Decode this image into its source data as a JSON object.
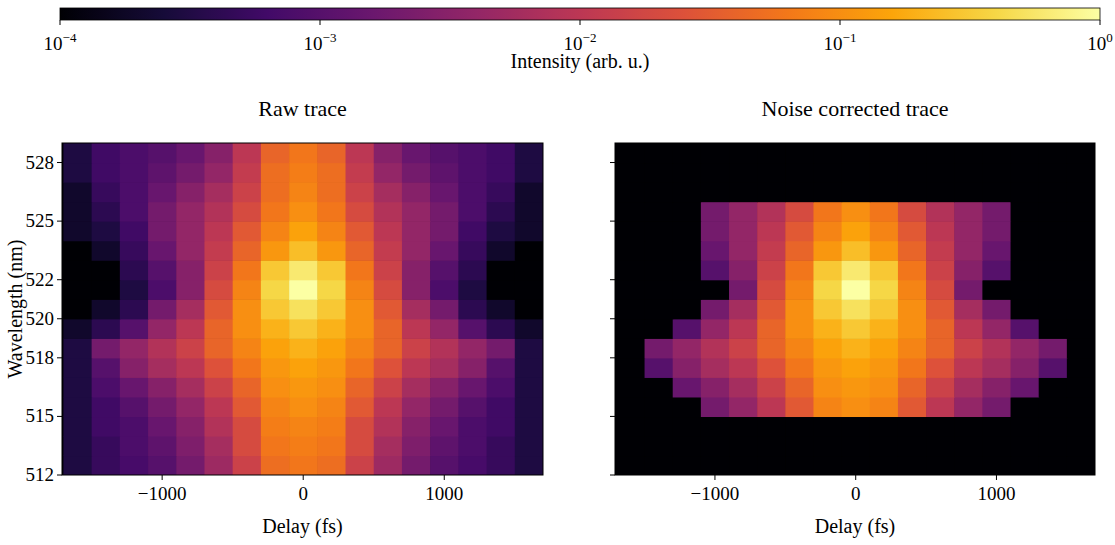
{
  "chart_data": [
    {
      "type": "heatmap",
      "title": "Raw trace",
      "x_label": "Delay (fs)",
      "y_label": "Wavelength (nm)",
      "xlim": [
        -1710,
        1700
      ],
      "ylim": [
        512,
        529
      ],
      "xticks": [
        -1000,
        0,
        1000
      ],
      "yticks": [
        512,
        515,
        518,
        520,
        522,
        525,
        528
      ],
      "log": true,
      "tick_labels": true,
      "x": [
        -1600,
        -1400,
        -1200,
        -1000,
        -800,
        -600,
        -400,
        -200,
        0,
        200,
        400,
        600,
        800,
        1000,
        1200,
        1400,
        1600
      ],
      "y": [
        512.5,
        513.5,
        514.5,
        515.5,
        516.5,
        517.5,
        518.5,
        519.5,
        520.5,
        521.5,
        522.5,
        523.5,
        524.5,
        525.5,
        526.5,
        527.5,
        528.5
      ],
      "values": [
        [
          0.0003,
          0.0005,
          0.0007,
          0.001,
          0.002,
          0.005,
          0.015,
          0.05,
          0.06,
          0.05,
          0.015,
          0.005,
          0.002,
          0.001,
          0.0007,
          0.0005,
          0.0003
        ],
        [
          0.0003,
          0.0005,
          0.0008,
          0.0012,
          0.0025,
          0.006,
          0.02,
          0.06,
          0.07,
          0.06,
          0.02,
          0.006,
          0.0025,
          0.0012,
          0.0008,
          0.0005,
          0.0003
        ],
        [
          0.0003,
          0.0006,
          0.0008,
          0.0015,
          0.003,
          0.008,
          0.02,
          0.07,
          0.08,
          0.07,
          0.02,
          0.008,
          0.003,
          0.0015,
          0.0008,
          0.0006,
          0.0003
        ],
        [
          0.0003,
          0.0006,
          0.001,
          0.002,
          0.004,
          0.01,
          0.03,
          0.08,
          0.1,
          0.08,
          0.03,
          0.01,
          0.004,
          0.002,
          0.001,
          0.0006,
          0.0003
        ],
        [
          0.0003,
          0.0008,
          0.0015,
          0.003,
          0.006,
          0.015,
          0.04,
          0.1,
          0.12,
          0.1,
          0.04,
          0.015,
          0.006,
          0.003,
          0.0015,
          0.0008,
          0.0003
        ],
        [
          0.0003,
          0.001,
          0.003,
          0.006,
          0.01,
          0.025,
          0.06,
          0.12,
          0.15,
          0.12,
          0.06,
          0.025,
          0.01,
          0.006,
          0.003,
          0.001,
          0.0003
        ],
        [
          0.0003,
          0.002,
          0.004,
          0.008,
          0.015,
          0.04,
          0.08,
          0.15,
          0.2,
          0.15,
          0.08,
          0.04,
          0.015,
          0.008,
          0.004,
          0.002,
          0.0003
        ],
        [
          0.0002,
          0.0004,
          0.001,
          0.004,
          0.01,
          0.04,
          0.1,
          0.2,
          0.3,
          0.2,
          0.1,
          0.04,
          0.01,
          0.004,
          0.001,
          0.0004,
          0.0002
        ],
        [
          0.0001,
          0.0002,
          0.0004,
          0.002,
          0.006,
          0.03,
          0.1,
          0.3,
          0.5,
          0.3,
          0.1,
          0.03,
          0.006,
          0.002,
          0.0004,
          0.0002,
          0.0001
        ],
        [
          0.0001,
          0.0001,
          0.0003,
          0.0008,
          0.003,
          0.02,
          0.08,
          0.4,
          1,
          0.4,
          0.08,
          0.02,
          0.003,
          0.0008,
          0.0003,
          0.0001,
          0.0001
        ],
        [
          0.0001,
          0.0001,
          0.0004,
          0.001,
          0.003,
          0.015,
          0.06,
          0.3,
          0.6,
          0.3,
          0.06,
          0.015,
          0.003,
          0.001,
          0.0004,
          0.0001,
          0.0001
        ],
        [
          0.0001,
          0.0002,
          0.0005,
          0.0015,
          0.004,
          0.012,
          0.04,
          0.12,
          0.25,
          0.12,
          0.04,
          0.012,
          0.004,
          0.0015,
          0.0005,
          0.0002,
          0.0001
        ],
        [
          0.0002,
          0.0003,
          0.0006,
          0.002,
          0.004,
          0.01,
          0.03,
          0.08,
          0.15,
          0.08,
          0.03,
          0.01,
          0.004,
          0.002,
          0.0006,
          0.0003,
          0.0002
        ],
        [
          0.0002,
          0.0004,
          0.0008,
          0.002,
          0.004,
          0.008,
          0.02,
          0.06,
          0.1,
          0.06,
          0.02,
          0.008,
          0.004,
          0.002,
          0.0008,
          0.0004,
          0.0002
        ],
        [
          0.0002,
          0.0005,
          0.0008,
          0.0015,
          0.003,
          0.006,
          0.015,
          0.05,
          0.08,
          0.05,
          0.015,
          0.006,
          0.003,
          0.0015,
          0.0008,
          0.0005,
          0.0002
        ],
        [
          0.0003,
          0.0006,
          0.0008,
          0.0012,
          0.002,
          0.004,
          0.012,
          0.05,
          0.07,
          0.05,
          0.012,
          0.004,
          0.002,
          0.0012,
          0.0008,
          0.0006,
          0.0003
        ],
        [
          0.0003,
          0.0006,
          0.0008,
          0.001,
          0.0015,
          0.003,
          0.01,
          0.04,
          0.06,
          0.04,
          0.01,
          0.003,
          0.0015,
          0.001,
          0.0008,
          0.0006,
          0.0003
        ]
      ]
    },
    {
      "type": "heatmap",
      "title": "Noise corrected trace",
      "x_label": "Delay (fs)",
      "xlim": [
        -1710,
        1700
      ],
      "ylim": [
        512,
        529
      ],
      "xticks": [
        -1000,
        0,
        1000
      ],
      "yticks": [
        512,
        515,
        518,
        520,
        522,
        525,
        528
      ],
      "log": true,
      "tick_labels": "x",
      "x": [
        -1600,
        -1400,
        -1200,
        -1000,
        -800,
        -600,
        -400,
        -200,
        0,
        200,
        400,
        600,
        800,
        1000,
        1200,
        1400,
        1600
      ],
      "y": [
        512.5,
        513.5,
        514.5,
        515.5,
        516.5,
        517.5,
        518.5,
        519.5,
        520.5,
        521.5,
        522.5,
        523.5,
        524.5,
        525.5,
        526.5,
        527.5,
        528.5
      ],
      "values": [
        [
          0.0001,
          0.0001,
          0.0001,
          0.0001,
          0.0001,
          0.0001,
          0.0001,
          0.0001,
          0.0001,
          0.0001,
          0.0001,
          0.0001,
          0.0001,
          0.0001,
          0.0001,
          0.0001,
          0.0001
        ],
        [
          0.0001,
          0.0001,
          0.0001,
          0.0001,
          0.0001,
          0.0001,
          0.0001,
          0.0001,
          0.0001,
          0.0001,
          0.0001,
          0.0001,
          0.0001,
          0.0001,
          0.0001,
          0.0001,
          0.0001
        ],
        [
          0.0001,
          0.0001,
          0.0001,
          0.0001,
          0.0001,
          0.0001,
          0.0001,
          0.0001,
          0.0001,
          0.0001,
          0.0001,
          0.0001,
          0.0001,
          0.0001,
          0.0001,
          0.0001,
          0.0001
        ],
        [
          0.0001,
          0.0001,
          0.0001,
          0.002,
          0.004,
          0.01,
          0.03,
          0.08,
          0.1,
          0.08,
          0.03,
          0.01,
          0.004,
          0.002,
          0.0001,
          0.0001,
          0.0001
        ],
        [
          0.0001,
          0.0001,
          0.0015,
          0.003,
          0.006,
          0.015,
          0.04,
          0.1,
          0.12,
          0.1,
          0.04,
          0.015,
          0.006,
          0.003,
          0.0015,
          0.0001,
          0.0001
        ],
        [
          0.0001,
          0.001,
          0.003,
          0.006,
          0.01,
          0.025,
          0.06,
          0.12,
          0.15,
          0.12,
          0.06,
          0.025,
          0.01,
          0.006,
          0.003,
          0.001,
          0.0001
        ],
        [
          0.0001,
          0.002,
          0.004,
          0.008,
          0.015,
          0.04,
          0.08,
          0.15,
          0.2,
          0.15,
          0.08,
          0.04,
          0.015,
          0.008,
          0.004,
          0.002,
          0.0001
        ],
        [
          0.0001,
          0.0001,
          0.001,
          0.004,
          0.01,
          0.04,
          0.1,
          0.2,
          0.3,
          0.2,
          0.1,
          0.04,
          0.01,
          0.004,
          0.001,
          0.0001,
          0.0001
        ],
        [
          0.0001,
          0.0001,
          0.0001,
          0.002,
          0.006,
          0.03,
          0.1,
          0.3,
          0.5,
          0.3,
          0.1,
          0.03,
          0.006,
          0.002,
          0.0001,
          0.0001,
          0.0001
        ],
        [
          0.0001,
          0.0001,
          0.0001,
          0.0001,
          0.002,
          0.02,
          0.08,
          0.4,
          1,
          0.4,
          0.08,
          0.02,
          0.002,
          0.0001,
          0.0001,
          0.0001,
          0.0001
        ],
        [
          0.0001,
          0.0001,
          0.0001,
          0.001,
          0.003,
          0.015,
          0.06,
          0.3,
          0.6,
          0.3,
          0.06,
          0.015,
          0.003,
          0.001,
          0.0001,
          0.0001,
          0.0001
        ],
        [
          0.0001,
          0.0001,
          0.0001,
          0.0015,
          0.004,
          0.012,
          0.04,
          0.12,
          0.25,
          0.12,
          0.04,
          0.012,
          0.004,
          0.0015,
          0.0001,
          0.0001,
          0.0001
        ],
        [
          0.0001,
          0.0001,
          0.0001,
          0.002,
          0.004,
          0.01,
          0.03,
          0.08,
          0.15,
          0.08,
          0.03,
          0.01,
          0.004,
          0.002,
          0.0001,
          0.0001,
          0.0001
        ],
        [
          0.0001,
          0.0001,
          0.0001,
          0.002,
          0.004,
          0.008,
          0.02,
          0.06,
          0.1,
          0.06,
          0.02,
          0.008,
          0.004,
          0.002,
          0.0001,
          0.0001,
          0.0001
        ],
        [
          0.0001,
          0.0001,
          0.0001,
          0.0001,
          0.0001,
          0.0001,
          0.0001,
          0.0001,
          0.0001,
          0.0001,
          0.0001,
          0.0001,
          0.0001,
          0.0001,
          0.0001,
          0.0001,
          0.0001
        ],
        [
          0.0001,
          0.0001,
          0.0001,
          0.0001,
          0.0001,
          0.0001,
          0.0001,
          0.0001,
          0.0001,
          0.0001,
          0.0001,
          0.0001,
          0.0001,
          0.0001,
          0.0001,
          0.0001,
          0.0001
        ],
        [
          0.0001,
          0.0001,
          0.0001,
          0.0001,
          0.0001,
          0.0001,
          0.0001,
          0.0001,
          0.0001,
          0.0001,
          0.0001,
          0.0001,
          0.0001,
          0.0001,
          0.0001,
          0.0001,
          0.0001
        ]
      ]
    }
  ],
  "colorbar": {
    "label": "Intensity (arb. u.)",
    "range": [
      0.0001,
      1
    ],
    "ticks": [
      {
        "value": 0.0001,
        "label": "10−4"
      },
      {
        "value": 0.001,
        "label": "10−3"
      },
      {
        "value": 0.01,
        "label": "10−2"
      },
      {
        "value": 0.1,
        "label": "10−1"
      },
      {
        "value": 1,
        "label": "100"
      }
    ]
  }
}
